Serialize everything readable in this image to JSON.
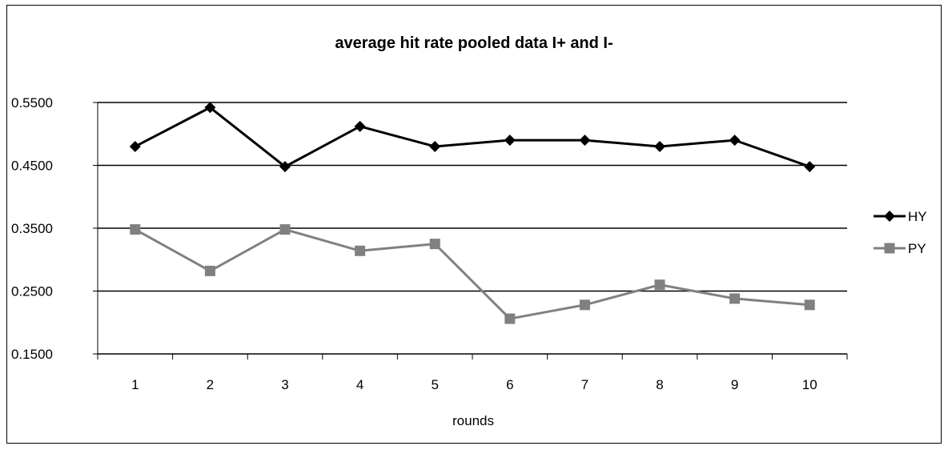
{
  "chart_data": {
    "type": "line",
    "title": "average hit rate pooled data I+ and I-",
    "xlabel": "rounds",
    "ylabel": "",
    "categories": [
      "1",
      "2",
      "3",
      "4",
      "5",
      "6",
      "7",
      "8",
      "9",
      "10"
    ],
    "ylim": [
      0.15,
      0.55
    ],
    "yticks": [
      0.15,
      0.25,
      0.35,
      0.45,
      0.55
    ],
    "ytick_labels": [
      "0.1500",
      "0.2500",
      "0.3500",
      "0.4500",
      "0.5500"
    ],
    "grid": true,
    "legend_position": "right",
    "series": [
      {
        "name": "HY",
        "color": "#000000",
        "marker": "diamond",
        "values": [
          0.48,
          0.542,
          0.448,
          0.512,
          0.48,
          0.49,
          0.49,
          0.48,
          0.49,
          0.448
        ]
      },
      {
        "name": "PY",
        "color": "#808080",
        "marker": "square",
        "values": [
          0.348,
          0.282,
          0.348,
          0.314,
          0.325,
          0.206,
          0.228,
          0.26,
          0.238,
          0.228
        ]
      }
    ]
  }
}
